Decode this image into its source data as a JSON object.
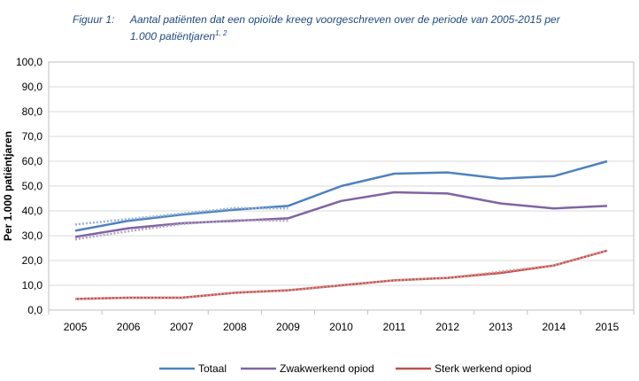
{
  "figure": {
    "label": "Figuur 1:",
    "caption_line1": "Aantal patiënten dat een opioïde kreeg voorgeschreven over de periode van 2005-2015  per",
    "caption_line2": "1.000 patiëntjaren",
    "caption_superscript": "1, 2"
  },
  "chart_data": {
    "type": "line",
    "title": "",
    "xlabel": "",
    "ylabel": "Per 1.000 patiëntjaren",
    "categories": [
      "2005",
      "2006",
      "2007",
      "2008",
      "2009",
      "2010",
      "2011",
      "2012",
      "2013",
      "2014",
      "2015"
    ],
    "ylim": [
      0,
      100
    ],
    "y_ticks": [
      "0,0",
      "10,0",
      "20,0",
      "30,0",
      "40,0",
      "50,0",
      "60,0",
      "70,0",
      "80,0",
      "90,0",
      "100,0"
    ],
    "grid": true,
    "legend_position": "bottom",
    "series": [
      {
        "name": "Totaal",
        "color": "#4f81bd",
        "trend_color": "#95b3d7",
        "values": [
          32,
          36,
          38.5,
          40.5,
          42,
          50,
          55,
          55.5,
          53,
          54,
          60
        ],
        "trend_values": [
          34.5,
          36.7,
          38.9,
          41.1,
          41
        ]
      },
      {
        "name": "Zwakwerkend opiod",
        "color": "#8064a2",
        "trend_color": "#b3a2c7",
        "values": [
          29.5,
          33,
          35,
          36,
          37,
          44,
          47.5,
          47,
          43,
          41,
          42
        ],
        "trend_values": [
          28.5,
          31.8,
          34.7,
          36.3,
          36
        ]
      },
      {
        "name": "Sterk werkend opiod",
        "color": "#c0504d",
        "trend_color": "#d99694",
        "values": [
          4.5,
          5,
          5,
          7,
          8,
          10,
          12,
          13,
          15,
          18,
          24
        ],
        "trend_values": [
          4.5,
          5,
          5,
          7,
          8,
          10,
          12,
          13,
          15.5,
          18,
          24
        ]
      }
    ]
  }
}
